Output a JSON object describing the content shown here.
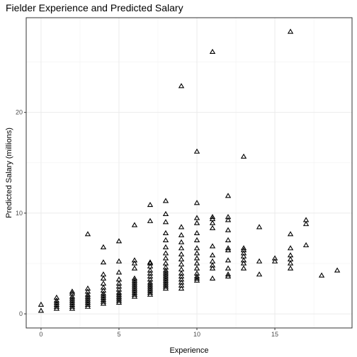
{
  "chart_data": {
    "type": "scatter",
    "title": "Fielder Experience and Predicted Salary",
    "xlabel": "Experience",
    "ylabel": "Predicted Salary (millions)",
    "xlim": [
      -0.95,
      19.95
    ],
    "ylim": [
      -1.4,
      29.4
    ],
    "x_ticks": [
      0,
      5,
      10,
      15
    ],
    "y_ticks": [
      0,
      10,
      20
    ],
    "grid": true,
    "marker": "open-triangle",
    "points": [
      [
        0,
        0.3
      ],
      [
        0,
        0.9
      ],
      [
        1,
        0.5
      ],
      [
        1,
        0.7
      ],
      [
        1,
        0.9
      ],
      [
        1,
        1.1
      ],
      [
        1,
        1.3
      ],
      [
        1,
        1.6
      ],
      [
        2,
        0.5
      ],
      [
        2,
        0.7
      ],
      [
        2,
        0.9
      ],
      [
        2,
        1.1
      ],
      [
        2,
        1.3
      ],
      [
        2,
        1.5
      ],
      [
        2,
        1.7
      ],
      [
        2,
        2.0
      ],
      [
        2,
        2.2
      ],
      [
        3,
        0.7
      ],
      [
        3,
        0.9
      ],
      [
        3,
        1.1
      ],
      [
        3,
        1.3
      ],
      [
        3,
        1.5
      ],
      [
        3,
        1.7
      ],
      [
        3,
        1.9
      ],
      [
        3,
        2.2
      ],
      [
        3,
        2.5
      ],
      [
        3,
        7.9
      ],
      [
        4,
        1.0
      ],
      [
        4,
        1.2
      ],
      [
        4,
        1.4
      ],
      [
        4,
        1.6
      ],
      [
        4,
        1.8
      ],
      [
        4,
        2.0
      ],
      [
        4,
        2.3
      ],
      [
        4,
        2.6
      ],
      [
        4,
        3.0
      ],
      [
        4,
        3.5
      ],
      [
        4,
        3.9
      ],
      [
        4,
        5.1
      ],
      [
        4,
        6.6
      ],
      [
        5,
        1.1
      ],
      [
        5,
        1.3
      ],
      [
        5,
        1.5
      ],
      [
        5,
        1.7
      ],
      [
        5,
        1.9
      ],
      [
        5,
        2.1
      ],
      [
        5,
        2.4
      ],
      [
        5,
        2.7
      ],
      [
        5,
        3.0
      ],
      [
        5,
        3.4
      ],
      [
        5,
        4.1
      ],
      [
        5,
        5.2
      ],
      [
        5,
        7.2
      ],
      [
        6,
        1.7
      ],
      [
        6,
        1.9
      ],
      [
        6,
        2.1
      ],
      [
        6,
        2.3
      ],
      [
        6,
        2.5
      ],
      [
        6,
        2.7
      ],
      [
        6,
        2.9
      ],
      [
        6,
        3.1
      ],
      [
        6,
        3.3
      ],
      [
        6,
        3.5
      ],
      [
        6,
        4.5
      ],
      [
        6,
        5.0
      ],
      [
        6,
        5.3
      ],
      [
        6,
        8.8
      ],
      [
        7,
        1.9
      ],
      [
        7,
        2.1
      ],
      [
        7,
        2.3
      ],
      [
        7,
        2.5
      ],
      [
        7,
        2.7
      ],
      [
        7,
        2.9
      ],
      [
        7,
        3.1
      ],
      [
        7,
        3.4
      ],
      [
        7,
        3.7
      ],
      [
        7,
        4.0
      ],
      [
        7,
        4.3
      ],
      [
        7,
        4.7
      ],
      [
        7,
        5.0
      ],
      [
        7,
        5.1
      ],
      [
        7,
        9.2
      ],
      [
        7,
        10.8
      ],
      [
        8,
        2.5
      ],
      [
        8,
        2.7
      ],
      [
        8,
        2.9
      ],
      [
        8,
        3.1
      ],
      [
        8,
        3.3
      ],
      [
        8,
        3.5
      ],
      [
        8,
        3.7
      ],
      [
        8,
        3.9
      ],
      [
        8,
        4.1
      ],
      [
        8,
        4.3
      ],
      [
        8,
        4.6
      ],
      [
        8,
        5.0
      ],
      [
        8,
        5.5
      ],
      [
        8,
        6.0
      ],
      [
        8,
        6.6
      ],
      [
        8,
        7.3
      ],
      [
        8,
        8.0
      ],
      [
        8,
        9.1
      ],
      [
        8,
        9.9
      ],
      [
        8,
        11.2
      ],
      [
        9,
        2.5
      ],
      [
        9,
        2.8
      ],
      [
        9,
        3.1
      ],
      [
        9,
        3.4
      ],
      [
        9,
        3.7
      ],
      [
        9,
        4.0
      ],
      [
        9,
        4.4
      ],
      [
        9,
        4.9
      ],
      [
        9,
        5.4
      ],
      [
        9,
        5.9
      ],
      [
        9,
        6.5
      ],
      [
        9,
        7.1
      ],
      [
        9,
        7.8
      ],
      [
        9,
        8.6
      ],
      [
        9,
        22.6
      ],
      [
        10,
        3.3
      ],
      [
        10,
        3.5
      ],
      [
        10,
        3.7
      ],
      [
        10,
        4.0
      ],
      [
        10,
        4.5
      ],
      [
        10,
        5.0
      ],
      [
        10,
        5.5
      ],
      [
        10,
        6.0
      ],
      [
        10,
        6.5
      ],
      [
        10,
        7.3
      ],
      [
        10,
        8.0
      ],
      [
        10,
        9.0
      ],
      [
        10,
        9.5
      ],
      [
        10,
        11.0
      ],
      [
        10,
        16.1
      ],
      [
        11,
        3.5
      ],
      [
        11,
        4.5
      ],
      [
        11,
        4.8
      ],
      [
        11,
        5.2
      ],
      [
        11,
        5.8
      ],
      [
        11,
        6.7
      ],
      [
        11,
        8.5
      ],
      [
        11,
        9.0
      ],
      [
        11,
        9.4
      ],
      [
        11,
        9.6
      ],
      [
        11,
        26.0
      ],
      [
        12,
        3.7
      ],
      [
        12,
        3.9
      ],
      [
        12,
        4.5
      ],
      [
        12,
        5.3
      ],
      [
        12,
        6.3
      ],
      [
        12,
        6.5
      ],
      [
        12,
        7.3
      ],
      [
        12,
        8.3
      ],
      [
        12,
        9.3
      ],
      [
        12,
        9.6
      ],
      [
        12,
        11.7
      ],
      [
        13,
        4.5
      ],
      [
        13,
        5.0
      ],
      [
        13,
        5.3
      ],
      [
        13,
        5.7
      ],
      [
        13,
        6.0
      ],
      [
        13,
        6.3
      ],
      [
        13,
        6.5
      ],
      [
        13,
        15.6
      ],
      [
        14,
        3.9
      ],
      [
        14,
        5.2
      ],
      [
        14,
        8.6
      ],
      [
        15,
        5.2
      ],
      [
        15,
        5.5
      ],
      [
        16,
        4.5
      ],
      [
        16,
        5.0
      ],
      [
        16,
        5.4
      ],
      [
        16,
        5.8
      ],
      [
        16,
        6.5
      ],
      [
        16,
        7.9
      ],
      [
        16,
        28.0
      ],
      [
        17,
        6.8
      ],
      [
        17,
        8.9
      ],
      [
        17,
        9.3
      ],
      [
        18,
        3.8
      ],
      [
        19,
        4.3
      ]
    ]
  }
}
